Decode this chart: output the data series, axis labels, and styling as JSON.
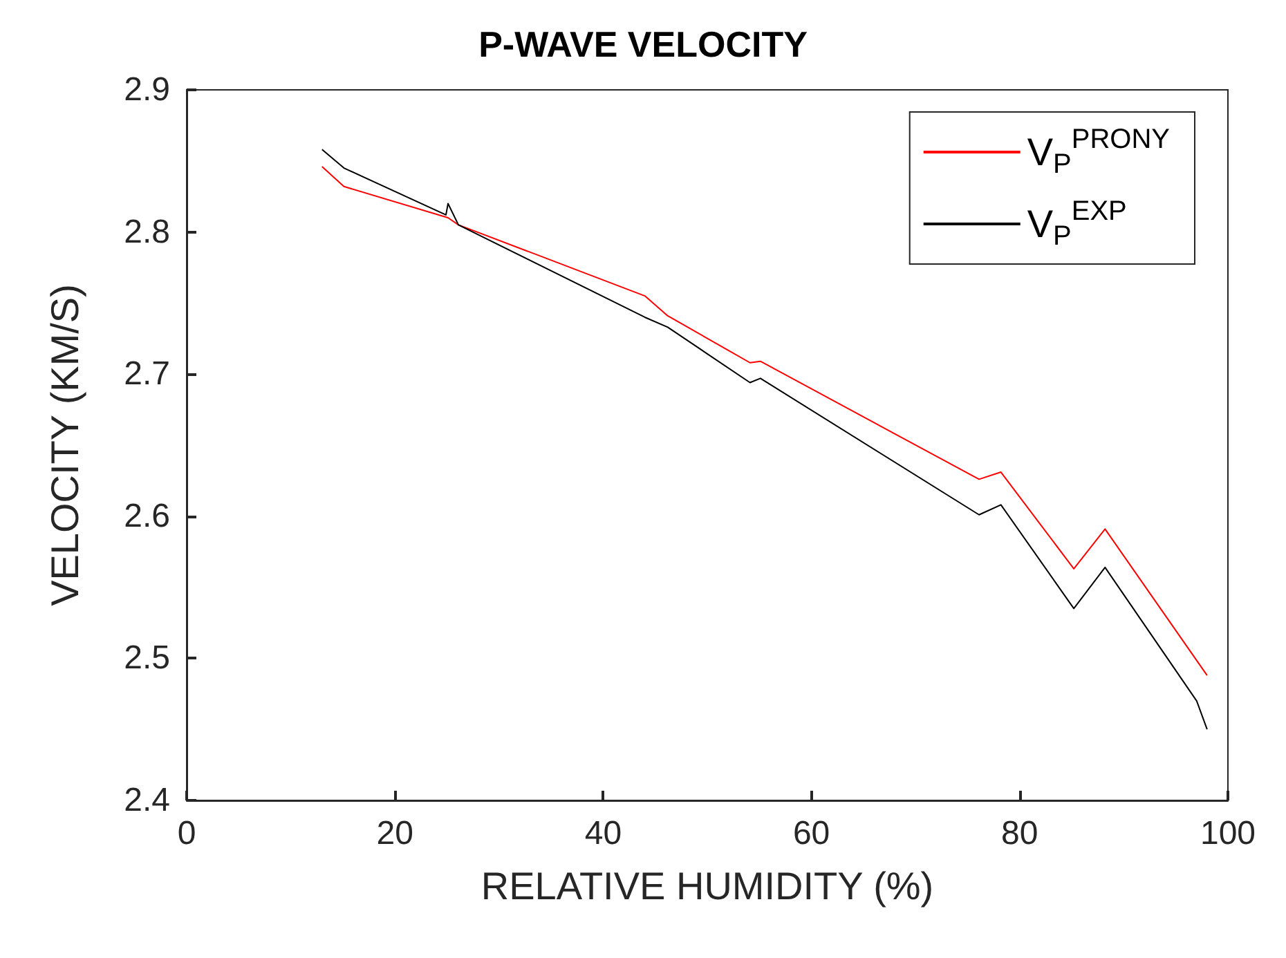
{
  "chart_data": {
    "type": "line",
    "title": "P-WAVE VELOCITY",
    "xlabel": "RELATIVE HUMIDITY (%)",
    "ylabel": "VELOCITY (KM/S)",
    "xlim": [
      0,
      100
    ],
    "xticks": [
      0,
      20,
      40,
      60,
      80,
      100
    ],
    "ylim": [
      2.4,
      2.9
    ],
    "yticks": [
      2.4,
      2.5,
      2.6,
      2.7,
      2.8,
      2.9
    ],
    "grid": false,
    "legend": "top right",
    "marker": "none",
    "line_style": "solid",
    "series": [
      {
        "name": "V$_{P}$$^{PRONY}$",
        "color": "#ff0000",
        "x": [
          13,
          15.1,
          25.1,
          26.1,
          44,
          46.2,
          54.1,
          55.1,
          76.1,
          78.2,
          85.2,
          88.2,
          98
        ],
        "values": [
          2.846,
          2.832,
          2.81,
          2.805,
          2.755,
          2.741,
          2.708,
          2.709,
          2.626,
          2.631,
          2.563,
          2.591,
          2.488
        ]
      },
      {
        "name": "V$_{P}$$^{EXP}$",
        "color": "#000000",
        "x": [
          13,
          15.1,
          24.9,
          25.1,
          26.1,
          44,
          46.2,
          54.1,
          55.1,
          76.1,
          78.2,
          85.2,
          88.2,
          97,
          98
        ],
        "values": [
          2.858,
          2.845,
          2.812,
          2.82,
          2.805,
          2.74,
          2.733,
          2.694,
          2.697,
          2.601,
          2.608,
          2.535,
          2.564,
          2.47,
          2.45
        ]
      }
    ]
  }
}
